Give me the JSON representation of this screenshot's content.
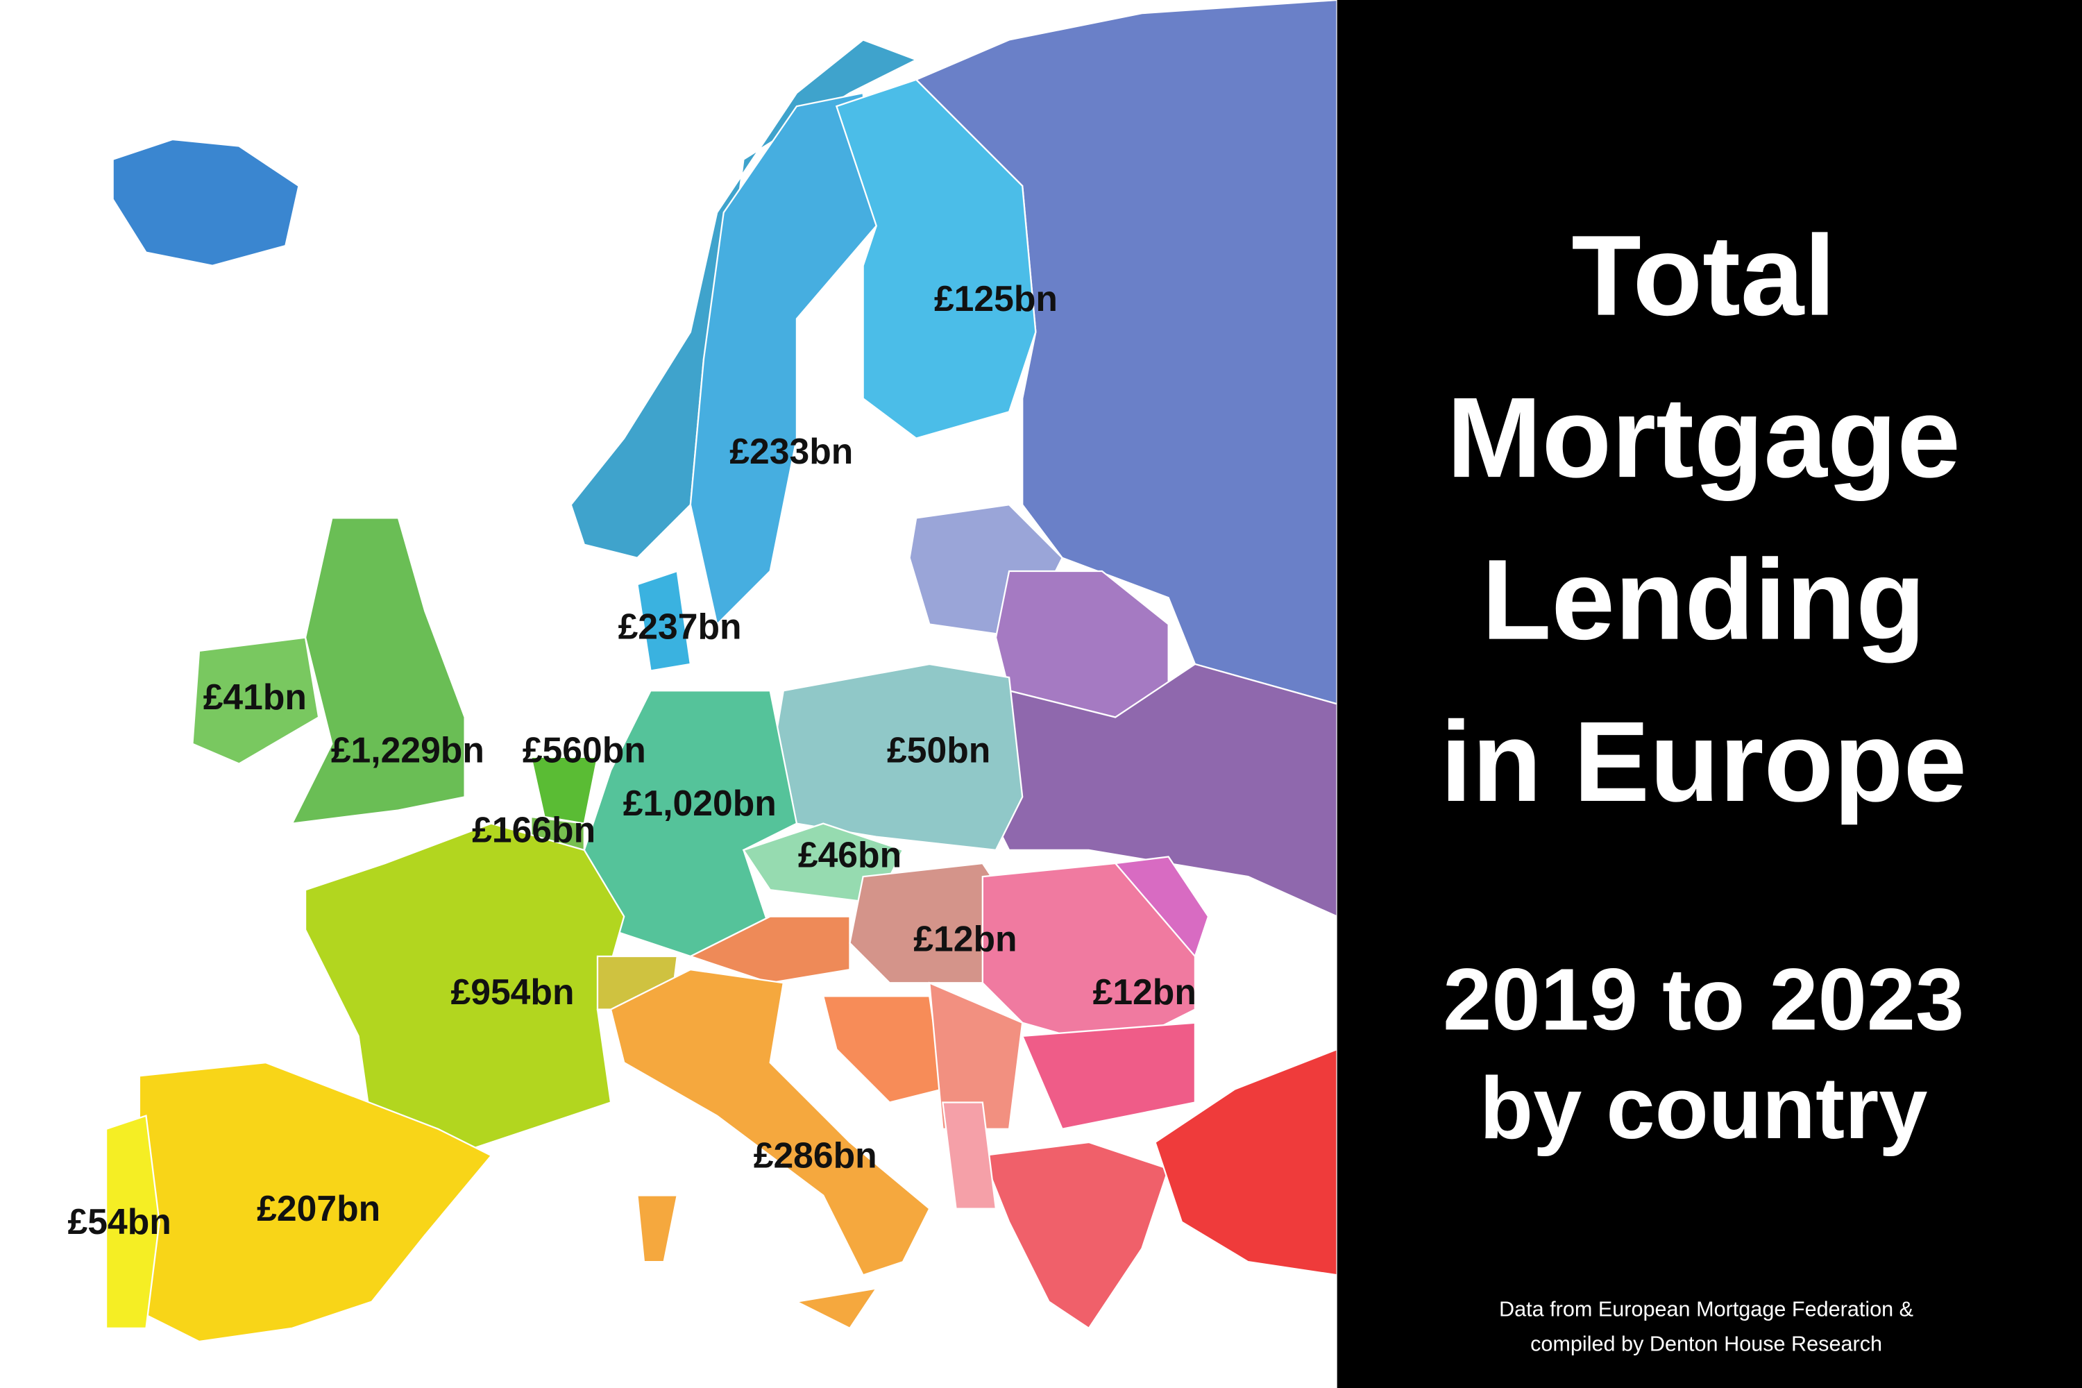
{
  "title_lines": [
    "Total",
    "Mortgage",
    "Lending",
    "in Europe"
  ],
  "subtitle_lines": [
    "2019 to 2023",
    "by country"
  ],
  "source_lines": [
    "Data from European Mortgage Federation &",
    "compiled by Denton House Research"
  ],
  "map_labels": [
    "£125bn",
    "£233bn",
    "£237bn",
    "£41bn",
    "£1,229bn",
    "£560bn",
    "£1,020bn",
    "£166bn",
    "£50bn",
    "£46bn",
    "£12bn",
    "£12bn",
    "£954bn",
    "£286bn",
    "£207bn",
    "£54bn"
  ]
}
